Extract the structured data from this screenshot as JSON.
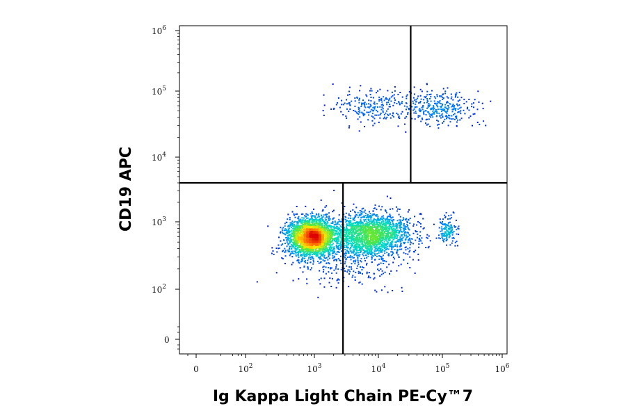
{
  "chart_data": {
    "type": "scatter",
    "title": "",
    "xlabel": "Ig Kappa Light Chain PE-Cy™7",
    "ylabel": "CD19 APC",
    "x_scale": "biexponential",
    "y_scale": "biexponential",
    "xlim": [
      -10,
      1300000
    ],
    "ylim": [
      -10,
      1300000
    ],
    "x_ticks": [
      {
        "base": "0",
        "exp": "",
        "value": 0
      },
      {
        "base": "10",
        "exp": "2",
        "value": 100
      },
      {
        "base": "10",
        "exp": "3",
        "value": 1000
      },
      {
        "base": "10",
        "exp": "4",
        "value": 10000
      },
      {
        "base": "10",
        "exp": "5",
        "value": 100000
      },
      {
        "base": "10",
        "exp": "6",
        "value": 1000000
      }
    ],
    "y_ticks": [
      {
        "base": "0",
        "exp": "",
        "value": 0
      },
      {
        "base": "10",
        "exp": "2",
        "value": 100
      },
      {
        "base": "10",
        "exp": "3",
        "value": 1000
      },
      {
        "base": "10",
        "exp": "4",
        "value": 10000
      },
      {
        "base": "10",
        "exp": "5",
        "value": 100000
      },
      {
        "base": "10",
        "exp": "6",
        "value": 1000000
      }
    ],
    "gates": {
      "horizontal_y": 4000,
      "upper_vertical_x": 32000,
      "lower_vertical_x": 2800
    },
    "populations": [
      {
        "x_log": 2.95,
        "y_log": 2.78,
        "sx": 0.17,
        "sy": 0.14,
        "count": 2600
      },
      {
        "x_log": 3.85,
        "y_log": 2.83,
        "sx": 0.32,
        "sy": 0.15,
        "count": 2000
      },
      {
        "x_log": 3.55,
        "y_log": 2.55,
        "sx": 0.45,
        "sy": 0.25,
        "count": 450
      },
      {
        "x_log": 5.08,
        "y_log": 2.88,
        "sx": 0.08,
        "sy": 0.1,
        "count": 150
      },
      {
        "x_log": 4.95,
        "y_log": 4.76,
        "sx": 0.28,
        "sy": 0.13,
        "count": 320
      },
      {
        "x_log": 3.9,
        "y_log": 4.76,
        "sx": 0.3,
        "sy": 0.13,
        "count": 230
      }
    ],
    "grid": false,
    "legend": "none"
  }
}
